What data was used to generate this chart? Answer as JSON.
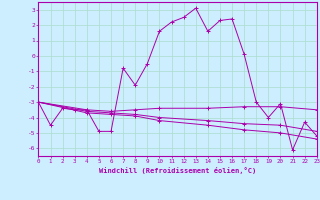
{
  "xlabel": "Windchill (Refroidissement éolien,°C)",
  "background_color": "#cceeff",
  "grid_color": "#aaddcc",
  "line_color": "#aa00aa",
  "xlim": [
    0,
    23
  ],
  "ylim": [
    -6.5,
    3.5
  ],
  "yticks": [
    -6,
    -5,
    -4,
    -3,
    -2,
    -1,
    0,
    1,
    2,
    3
  ],
  "xticks": [
    0,
    1,
    2,
    3,
    4,
    5,
    6,
    7,
    8,
    9,
    10,
    11,
    12,
    13,
    14,
    15,
    16,
    17,
    18,
    19,
    20,
    21,
    22,
    23
  ],
  "series": [
    [
      [
        0,
        -3
      ],
      [
        1,
        -4.5
      ],
      [
        2,
        -3.4
      ],
      [
        3,
        -3.5
      ],
      [
        4,
        -3.5
      ],
      [
        5,
        -4.9
      ],
      [
        6,
        -4.9
      ],
      [
        7,
        -0.8
      ],
      [
        8,
        -1.9
      ],
      [
        9,
        -0.5
      ],
      [
        10,
        1.6
      ],
      [
        11,
        2.2
      ],
      [
        12,
        2.5
      ],
      [
        13,
        3.1
      ],
      [
        14,
        1.6
      ],
      [
        15,
        2.3
      ],
      [
        16,
        2.4
      ],
      [
        17,
        0.1
      ],
      [
        18,
        -3.0
      ],
      [
        19,
        -4.0
      ],
      [
        20,
        -3.1
      ],
      [
        21,
        -6.1
      ],
      [
        22,
        -4.3
      ],
      [
        23,
        -5.2
      ]
    ],
    [
      [
        0,
        -3.0
      ],
      [
        4,
        -3.5
      ],
      [
        6,
        -3.6
      ],
      [
        8,
        -3.5
      ],
      [
        10,
        -3.4
      ],
      [
        14,
        -3.4
      ],
      [
        17,
        -3.3
      ],
      [
        20,
        -3.3
      ],
      [
        23,
        -3.5
      ]
    ],
    [
      [
        0,
        -3.0
      ],
      [
        4,
        -3.6
      ],
      [
        6,
        -3.7
      ],
      [
        8,
        -3.8
      ],
      [
        10,
        -4.0
      ],
      [
        14,
        -4.2
      ],
      [
        17,
        -4.4
      ],
      [
        20,
        -4.5
      ],
      [
        23,
        -4.9
      ]
    ],
    [
      [
        0,
        -3.0
      ],
      [
        4,
        -3.7
      ],
      [
        6,
        -3.8
      ],
      [
        8,
        -3.9
      ],
      [
        10,
        -4.2
      ],
      [
        14,
        -4.5
      ],
      [
        17,
        -4.8
      ],
      [
        20,
        -5.0
      ],
      [
        23,
        -5.4
      ]
    ]
  ]
}
